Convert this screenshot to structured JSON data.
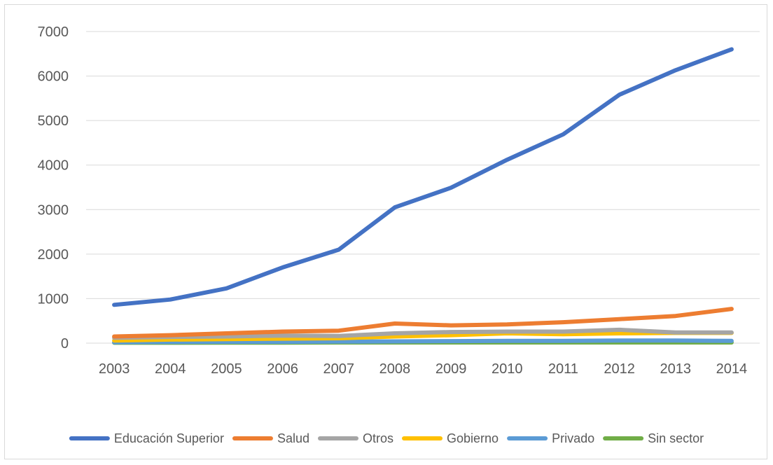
{
  "chart_data": {
    "type": "line",
    "categories": [
      "2003",
      "2004",
      "2005",
      "2006",
      "2007",
      "2008",
      "2009",
      "2010",
      "2011",
      "2012",
      "2013",
      "2014"
    ],
    "ylim": [
      0,
      7000
    ],
    "yticks": [
      0,
      1000,
      2000,
      3000,
      4000,
      5000,
      6000,
      7000
    ],
    "grid": true,
    "legend_position": "bottom",
    "series": [
      {
        "name": "Educación Superior",
        "color": "#4472C4",
        "values": [
          860,
          980,
          1230,
          1700,
          2100,
          3050,
          3490,
          4120,
          4690,
          5580,
          6130,
          6600
        ]
      },
      {
        "name": "Salud",
        "color": "#ED7D31",
        "values": [
          150,
          180,
          220,
          260,
          280,
          440,
          400,
          420,
          470,
          540,
          610,
          770
        ]
      },
      {
        "name": "Otros",
        "color": "#A5A5A5",
        "values": [
          120,
          140,
          150,
          170,
          160,
          220,
          250,
          260,
          260,
          300,
          240,
          240
        ]
      },
      {
        "name": "Gobierno",
        "color": "#FFC000",
        "values": [
          60,
          80,
          90,
          100,
          110,
          150,
          180,
          220,
          200,
          220,
          230,
          230
        ]
      },
      {
        "name": "Privado",
        "color": "#5B9BD5",
        "values": [
          20,
          25,
          30,
          30,
          35,
          40,
          45,
          50,
          50,
          60,
          60,
          50
        ]
      },
      {
        "name": "Sin sector",
        "color": "#70AD47",
        "values": [
          10,
          10,
          12,
          12,
          15,
          15,
          15,
          15,
          15,
          15,
          15,
          15
        ]
      }
    ]
  }
}
